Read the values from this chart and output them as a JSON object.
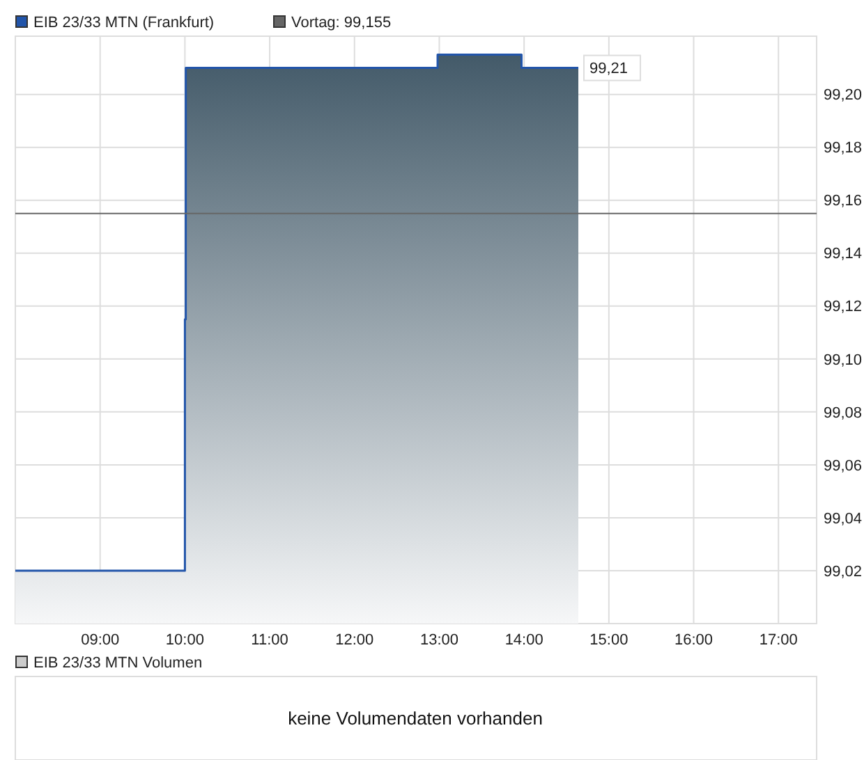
{
  "chart_data": [
    {
      "type": "area",
      "series": [
        {
          "name": "EIB 23/33 MTN (Frankfurt)",
          "color": "#2255aa",
          "x": [
            8.0,
            10.0,
            10.0,
            10.01,
            10.01,
            12.98,
            12.98,
            13.97,
            13.97,
            14.64
          ],
          "values": [
            99.02,
            99.02,
            99.115,
            99.115,
            99.21,
            99.21,
            99.215,
            99.215,
            99.21,
            99.21
          ]
        }
      ],
      "line_style": "solid",
      "marker": "none",
      "grid": true,
      "legend": "top left",
      "xlim": [
        8.0,
        17.45
      ],
      "xticks": [
        {
          "value": 9,
          "label": "09:00"
        },
        {
          "value": 10,
          "label": "10:00"
        },
        {
          "value": 11,
          "label": "11:00"
        },
        {
          "value": 12,
          "label": "12:00"
        },
        {
          "value": 13,
          "label": "13:00"
        },
        {
          "value": 14,
          "label": "14:00"
        },
        {
          "value": 15,
          "label": "15:00"
        },
        {
          "value": 16,
          "label": "16:00"
        },
        {
          "value": 17,
          "label": "17:00"
        }
      ],
      "ylim": [
        99.0,
        99.222
      ],
      "yticks": [
        {
          "value": 99.02,
          "label": "99,02"
        },
        {
          "value": 99.04,
          "label": "99,04"
        },
        {
          "value": 99.06,
          "label": "99,06"
        },
        {
          "value": 99.08,
          "label": "99,08"
        },
        {
          "value": 99.1,
          "label": "99,10"
        },
        {
          "value": 99.12,
          "label": "99,12"
        },
        {
          "value": 99.14,
          "label": "99,14"
        },
        {
          "value": 99.16,
          "label": "99,16"
        },
        {
          "value": 99.18,
          "label": "99,18"
        },
        {
          "value": 99.2,
          "label": "99,20"
        }
      ],
      "ref_lines": [
        {
          "axis": "y",
          "value": 99.155,
          "label": "Vortag: 99,155",
          "color": "#666666"
        }
      ],
      "annotations": [
        {
          "text": "99,21",
          "x": 14.64,
          "y": 99.21
        }
      ]
    },
    {
      "type": "other",
      "title": "EIB 23/33 MTN Volumen",
      "annotations": [
        "keine Volumendaten vorhanden"
      ]
    }
  ]
}
